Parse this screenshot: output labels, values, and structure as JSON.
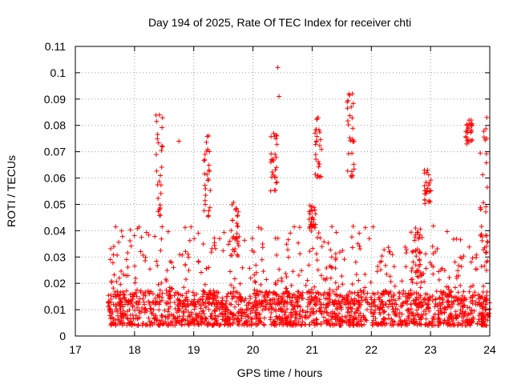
{
  "chart_data": {
    "type": "scatter",
    "title": "Day 194 of 2025, Rate Of TEC Index for receiver chti",
    "xlabel": "GPS time / hours",
    "ylabel": "ROTI / TECUs",
    "xlim": [
      17,
      24
    ],
    "ylim": [
      0,
      0.11
    ],
    "xticks": [
      17,
      18,
      19,
      20,
      21,
      22,
      23,
      24
    ],
    "xtick_labels": [
      "17",
      "18",
      "19",
      "20",
      "21",
      "22",
      "23",
      "24"
    ],
    "yticks": [
      0,
      0.01,
      0.02,
      0.03,
      0.04,
      0.05,
      0.06,
      0.07,
      0.08,
      0.09,
      0.1,
      0.11
    ],
    "ytick_labels": [
      "0",
      "0.01",
      "0.02",
      "0.03",
      "0.04",
      "0.05",
      "0.06",
      "0.07",
      "0.08",
      "0.09",
      "0.1",
      "0.11"
    ],
    "grid": true,
    "marker": "+",
    "color": "#ff0000",
    "data_start_hour": 17.55,
    "data_end_hour": 24.0,
    "baseline_range": [
      0.004,
      0.017
    ],
    "notable_peaks": [
      {
        "x": 17.65,
        "y": 0.034
      },
      {
        "x": 18.42,
        "y": 0.084
      },
      {
        "x": 18.75,
        "y": 0.074
      },
      {
        "x": 19.25,
        "y": 0.076
      },
      {
        "x": 20.35,
        "y": 0.077
      },
      {
        "x": 20.42,
        "y": 0.102
      },
      {
        "x": 20.44,
        "y": 0.091
      },
      {
        "x": 21.1,
        "y": 0.083
      },
      {
        "x": 21.68,
        "y": 0.092
      },
      {
        "x": 21.66,
        "y": 0.087
      },
      {
        "x": 22.95,
        "y": 0.063
      },
      {
        "x": 23.65,
        "y": 0.082
      },
      {
        "x": 23.95,
        "y": 0.083
      }
    ],
    "clusters": [
      {
        "x": 18.42,
        "y_min": 0.045,
        "y_max": 0.084
      },
      {
        "x": 19.22,
        "y_min": 0.045,
        "y_max": 0.076
      },
      {
        "x": 19.7,
        "y_min": 0.03,
        "y_max": 0.052
      },
      {
        "x": 20.35,
        "y_min": 0.055,
        "y_max": 0.077
      },
      {
        "x": 21.0,
        "y_min": 0.04,
        "y_max": 0.05
      },
      {
        "x": 21.1,
        "y_min": 0.06,
        "y_max": 0.083
      },
      {
        "x": 21.65,
        "y_min": 0.06,
        "y_max": 0.092
      },
      {
        "x": 22.8,
        "y_min": 0.02,
        "y_max": 0.042
      },
      {
        "x": 22.95,
        "y_min": 0.05,
        "y_max": 0.063
      },
      {
        "x": 23.65,
        "y_min": 0.072,
        "y_max": 0.082
      },
      {
        "x": 23.9,
        "y_min": 0.03,
        "y_max": 0.083
      }
    ]
  }
}
